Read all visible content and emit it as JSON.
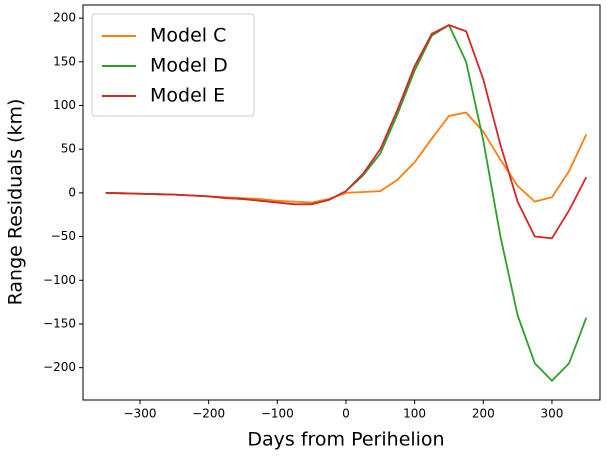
{
  "chart_data": {
    "type": "line",
    "xlabel": "Days from Perihelion",
    "ylabel": "Range Residuals (km)",
    "x": [
      -350,
      -325,
      -300,
      -275,
      -250,
      -225,
      -200,
      -175,
      -150,
      -125,
      -100,
      -75,
      -50,
      -25,
      0,
      25,
      50,
      75,
      100,
      125,
      150,
      175,
      200,
      225,
      250,
      275,
      300,
      325,
      350
    ],
    "series": [
      {
        "name": "Model C",
        "color": "#ff7f0e",
        "values": [
          0,
          -0.5,
          -1,
          -1.5,
          -2,
          -3,
          -4,
          -5,
          -6,
          -7,
          -9,
          -10,
          -11,
          -7,
          0,
          1,
          2,
          15,
          35,
          62,
          88,
          92,
          70,
          38,
          8,
          -10,
          -5,
          25,
          67
        ]
      },
      {
        "name": "Model D",
        "color": "#2ca02c",
        "values": [
          0,
          -0.5,
          -1,
          -1.5,
          -2,
          -3,
          -4,
          -6,
          -7,
          -9,
          -11,
          -13,
          -13,
          -8,
          2,
          20,
          45,
          90,
          140,
          180,
          192,
          150,
          60,
          -50,
          -140,
          -195,
          -215,
          -195,
          -143
        ]
      },
      {
        "name": "Model E",
        "color": "#d62728",
        "values": [
          0,
          -0.5,
          -1,
          -1.5,
          -2,
          -3,
          -4,
          -6,
          -7,
          -9,
          -11,
          -13,
          -13,
          -8,
          2,
          22,
          50,
          95,
          145,
          182,
          192,
          185,
          130,
          55,
          -10,
          -50,
          -52,
          -20,
          18
        ]
      }
    ],
    "xlim": [
      -383,
      370
    ],
    "ylim": [
      -237,
      215
    ],
    "xticks": [
      {
        "value": -300,
        "label": "−300"
      },
      {
        "value": -200,
        "label": "−200"
      },
      {
        "value": -100,
        "label": "−100"
      },
      0,
      100,
      200,
      300
    ],
    "yticks": [
      {
        "value": -200,
        "label": "−200"
      },
      {
        "value": -150,
        "label": "−150"
      },
      {
        "value": -100,
        "label": "−100"
      },
      {
        "value": -50,
        "label": "−50"
      },
      0,
      50,
      100,
      150,
      200
    ],
    "legend": "upper left"
  }
}
